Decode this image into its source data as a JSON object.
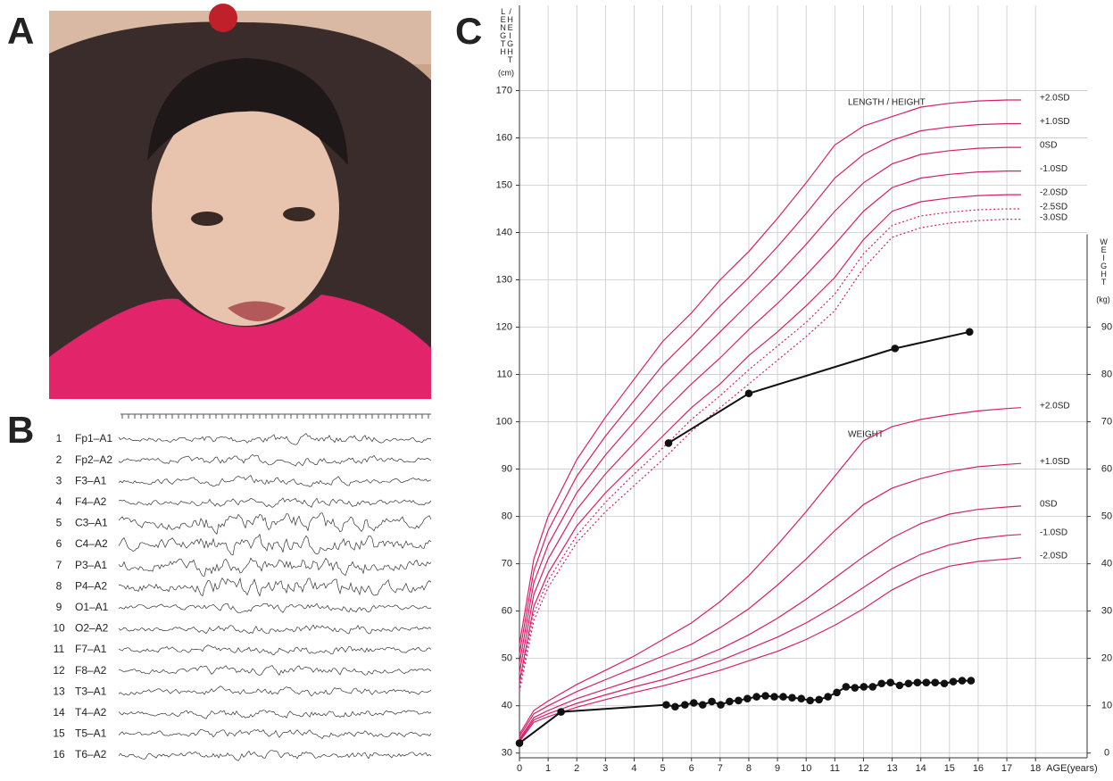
{
  "panel_labels": [
    "A",
    "B",
    "C"
  ],
  "eeg": {
    "channels": [
      {
        "number": "1",
        "name": "Fp1–A1"
      },
      {
        "number": "2",
        "name": "Fp2–A2"
      },
      {
        "number": "3",
        "name": "F3–A1"
      },
      {
        "number": "4",
        "name": "F4–A2"
      },
      {
        "number": "5",
        "name": "C3–A1"
      },
      {
        "number": "6",
        "name": "C4–A2"
      },
      {
        "number": "7",
        "name": "P3–A1"
      },
      {
        "number": "8",
        "name": "P4–A2"
      },
      {
        "number": "9",
        "name": "O1–A1"
      },
      {
        "number": "10",
        "name": "O2–A2"
      },
      {
        "number": "11",
        "name": "F7–A1"
      },
      {
        "number": "12",
        "name": "F8–A2"
      },
      {
        "number": "13",
        "name": "T3–A1"
      },
      {
        "number": "14",
        "name": "T4–A2"
      },
      {
        "number": "15",
        "name": "T5–A1"
      },
      {
        "number": "16",
        "name": "T6–A2"
      }
    ]
  },
  "chart_data": {
    "type": "line",
    "y_label": [
      "LENGTH",
      "/HEIGHT",
      "(cm)"
    ],
    "y2_label": [
      "WEIGHT",
      "(kg)"
    ],
    "x_label": "AGE(years)",
    "annotations": [
      "LENGTH / HEIGHT",
      "WEIGHT"
    ],
    "xlim": [
      0,
      19.8
    ],
    "xticks": [
      0,
      1,
      2,
      3,
      4,
      5,
      6,
      7,
      8,
      9,
      10,
      11,
      12,
      13,
      14,
      15,
      16,
      17,
      18
    ],
    "ylim": [
      29,
      188
    ],
    "yticks": [
      30,
      40,
      50,
      60,
      70,
      80,
      90,
      100,
      110,
      120,
      130,
      140,
      150,
      160,
      170
    ],
    "y2lim": [
      -1,
      158
    ],
    "y2ticks": [
      0,
      10,
      20,
      30,
      40,
      50,
      60,
      70,
      80,
      90
    ],
    "grid": true,
    "x": [
      0,
      0.5,
      1,
      2,
      3,
      4,
      5,
      6,
      7,
      8,
      9,
      10,
      11,
      12,
      13,
      14,
      15,
      16,
      17,
      17.5
    ],
    "series": [
      {
        "name": "+2.0SD",
        "color": "#d4206a",
        "values": [
          53,
          71,
          80,
          92,
          101,
          109,
          117,
          123,
          130,
          136,
          143,
          150.5,
          158.5,
          162.5,
          164.5,
          166.5,
          167.3,
          167.8,
          168,
          168
        ]
      },
      {
        "name": "+1.0SD",
        "color": "#d4206a",
        "values": [
          51,
          68.5,
          77,
          88.5,
          97,
          104.5,
          112,
          118,
          124.5,
          130.5,
          137,
          144,
          151.5,
          156.5,
          159.5,
          161.5,
          162.3,
          162.8,
          163,
          163
        ]
      },
      {
        "name": "0SD",
        "color": "#d4206a",
        "values": [
          49,
          66,
          74,
          85,
          93,
          100,
          107,
          113,
          119,
          125,
          131,
          137.5,
          144.5,
          150.5,
          154.5,
          156.5,
          157.3,
          157.8,
          158,
          158
        ]
      },
      {
        "name": "-1.0SD",
        "color": "#d4206a",
        "values": [
          47,
          63.5,
          71,
          81.5,
          89,
          95.5,
          102,
          108,
          113.5,
          119.5,
          125,
          131,
          137.5,
          144.5,
          149.5,
          151.5,
          152.3,
          152.8,
          153,
          153
        ]
      },
      {
        "name": "-2.0SD",
        "color": "#d4206a",
        "values": [
          45,
          61,
          68,
          78,
          85,
          91,
          97,
          103,
          108,
          114,
          119,
          124.5,
          130.5,
          138.5,
          144.5,
          146.5,
          147.3,
          147.8,
          148,
          148
        ]
      },
      {
        "name": "-2.5SD",
        "color": "#d4206a",
        "dashed": true,
        "values": [
          44,
          59.5,
          66.5,
          76,
          83,
          89,
          94.5,
          100.5,
          105.5,
          111,
          116,
          121,
          127,
          135.5,
          141.5,
          143.5,
          144.3,
          144.8,
          145,
          145
        ]
      },
      {
        "name": "-3.0SD",
        "color": "#d4206a",
        "dashed": true,
        "values": [
          43,
          58,
          65,
          74.5,
          81,
          86.5,
          92,
          98,
          103,
          108,
          113,
          118,
          123.5,
          132.5,
          139,
          141,
          142,
          142.5,
          142.8,
          142.8
        ]
      },
      {
        "name": "+2.0SD",
        "color": "#d4206a",
        "axis": "y2",
        "values": [
          4,
          9,
          11,
          14.5,
          17.5,
          20.5,
          24,
          27.5,
          32,
          37.5,
          44,
          51,
          58.5,
          66,
          69,
          70.5,
          71.5,
          72.3,
          72.8,
          73
        ]
      },
      {
        "name": "+1.0SD",
        "color": "#d4206a",
        "axis": "y2",
        "values": [
          3.5,
          8.3,
          10,
          13,
          15.5,
          18,
          20.5,
          23,
          26.5,
          30.5,
          35.5,
          41,
          47,
          52.5,
          56,
          58,
          59.5,
          60.5,
          61,
          61.2
        ]
      },
      {
        "name": "0SD",
        "color": "#d4206a",
        "axis": "y2",
        "values": [
          3,
          7.5,
          9,
          11.5,
          13.5,
          15.5,
          17.5,
          19.5,
          22,
          25,
          28.5,
          32.5,
          37,
          41.5,
          45.5,
          48.5,
          50.5,
          51.5,
          52,
          52.2
        ]
      },
      {
        "name": "-1.0SD",
        "color": "#d4206a",
        "axis": "y2",
        "values": [
          2.7,
          7,
          8.3,
          10.5,
          12.3,
          14,
          15.5,
          17.5,
          19.5,
          22,
          24.5,
          27.5,
          31,
          35,
          39,
          42,
          44,
          45.3,
          46,
          46.2
        ]
      },
      {
        "name": "-2.0SD",
        "color": "#d4206a",
        "axis": "y2",
        "values": [
          2.4,
          6.5,
          7.7,
          9.7,
          11.3,
          12.8,
          14.2,
          15.8,
          17.5,
          19.5,
          21.5,
          24,
          27,
          30.5,
          34.5,
          37.5,
          39.5,
          40.5,
          41,
          41.3
        ]
      },
      {
        "color": "#111111",
        "marker": true,
        "x": [
          5.2,
          8.0,
          13.1,
          15.7
        ],
        "values": [
          95.5,
          106,
          115.5,
          119
        ]
      },
      {
        "color": "#111111",
        "marker": true,
        "axis": "y2",
        "x": [
          0,
          1.45,
          5.12,
          5.43,
          5.77,
          6.08,
          6.39,
          6.71,
          7.02,
          7.33,
          7.64,
          7.95,
          8.27,
          8.58,
          8.89,
          9.2,
          9.51,
          9.83,
          10.14,
          10.45,
          10.76,
          11.07,
          11.39,
          11.7,
          12.01,
          12.32,
          12.63,
          12.94,
          13.26,
          13.57,
          13.88,
          14.19,
          14.5,
          14.82,
          15.13,
          15.44,
          15.75
        ],
        "values": [
          2.1,
          8.7,
          10.2,
          9.8,
          10.2,
          10.6,
          10.2,
          10.9,
          10.2,
          10.9,
          11.1,
          11.5,
          11.9,
          12.1,
          11.9,
          11.9,
          11.7,
          11.5,
          11.1,
          11.3,
          11.9,
          12.8,
          14.0,
          13.8,
          14.0,
          14.0,
          14.7,
          14.9,
          14.3,
          14.7,
          14.9,
          14.9,
          14.9,
          14.7,
          15.1,
          15.3,
          15.3
        ]
      }
    ]
  }
}
